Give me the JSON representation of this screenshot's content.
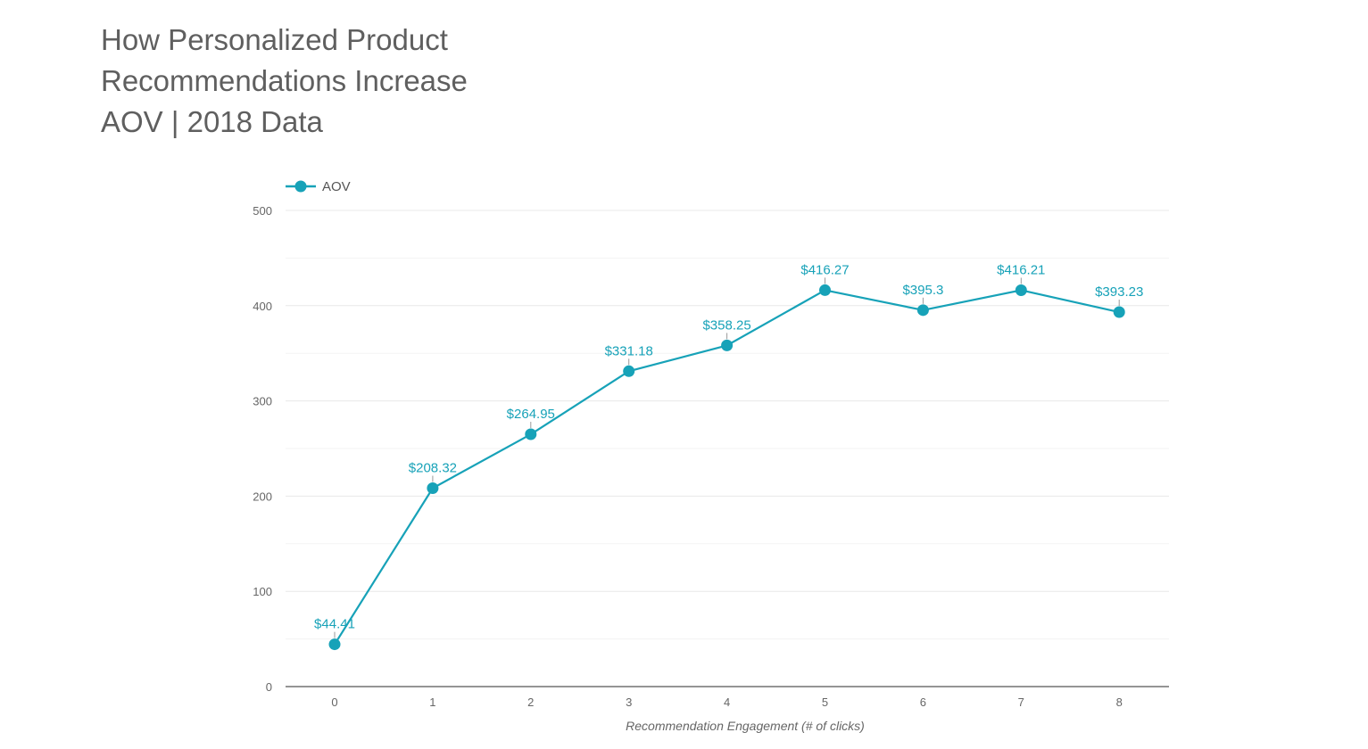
{
  "title_lines": [
    "How Personalized Product",
    "Recommendations Increase",
    "AOV | 2018 Data"
  ],
  "chart_data": {
    "type": "line",
    "title": "How Personalized Product Recommendations Increase AOV | 2018 Data",
    "xlabel": "Recommendation Engagement (# of clicks)",
    "ylabel": "",
    "x": [
      0,
      1,
      2,
      3,
      4,
      5,
      6,
      7,
      8
    ],
    "series": [
      {
        "name": "AOV",
        "values": [
          44.41,
          208.32,
          264.95,
          331.18,
          358.25,
          416.27,
          395.3,
          416.21,
          393.23
        ],
        "labels": [
          "$44.41",
          "$208.32",
          "$264.95",
          "$331.18",
          "$358.25",
          "$416.27",
          "$395.3",
          "$416.21",
          "$393.23"
        ],
        "color": "#17a2b8"
      }
    ],
    "ylim": [
      0,
      500
    ],
    "yticks": [
      0,
      100,
      200,
      300,
      400,
      500
    ],
    "grid": true,
    "legend_position": "top-left"
  },
  "colors": {
    "series": "#17a2b8",
    "gridline": "#e8e8e8",
    "axis": "#555555",
    "title": "#5f5f5f"
  }
}
